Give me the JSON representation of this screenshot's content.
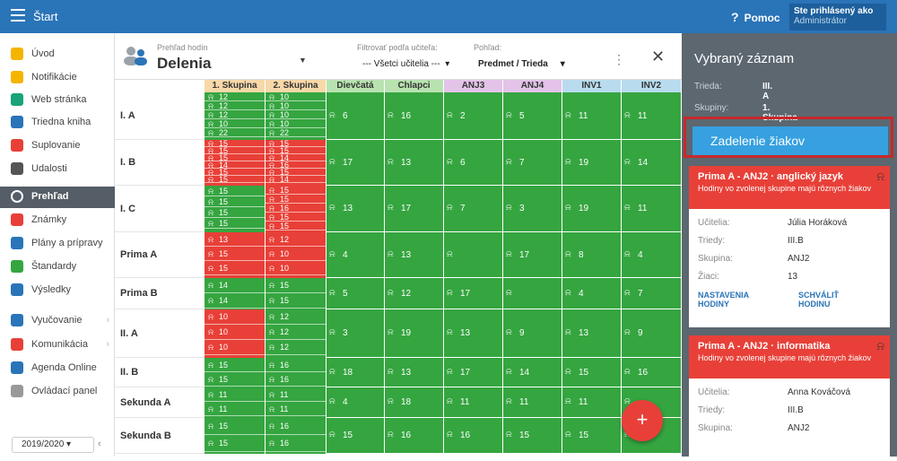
{
  "topbar": {
    "start": "Štart",
    "help": "Pomoc",
    "user_line": "Ste prihlásený ako",
    "user_role": "Administrátor"
  },
  "sidebar": {
    "items": [
      {
        "label": "Úvod",
        "icon": "star-icon",
        "color": "#f5b400"
      },
      {
        "label": "Notifikácie",
        "icon": "envelope-icon",
        "color": "#f5b400"
      },
      {
        "label": "Web stránka",
        "icon": "home-icon",
        "color": "#1aa37a"
      },
      {
        "label": "Triedna kniha",
        "icon": "book-icon",
        "color": "#2a74b8"
      },
      {
        "label": "Suplovanie",
        "icon": "person-icon",
        "color": "#e84038"
      },
      {
        "label": "Udalosti",
        "icon": "calendar-icon",
        "color": "#555"
      },
      {
        "label": "Prehľad",
        "icon": "check-icon",
        "color": "#fff"
      },
      {
        "label": "Známky",
        "icon": "grade-icon",
        "color": "#e84038"
      },
      {
        "label": "Plány a prípravy",
        "icon": "folder-icon",
        "color": "#2a74b8"
      },
      {
        "label": "Štandardy",
        "icon": "shield-icon",
        "color": "#35a540"
      },
      {
        "label": "Výsledky",
        "icon": "bar-chart-icon",
        "color": "#2a74b8"
      },
      {
        "label": "Vyučovanie",
        "icon": "board-icon",
        "color": "#2a74b8"
      },
      {
        "label": "Komunikácia",
        "icon": "people-icon",
        "color": "#e84038"
      },
      {
        "label": "Agenda Online",
        "icon": "pen-icon",
        "color": "#2a74b8"
      },
      {
        "label": "Ovládací panel",
        "icon": "gear-icon",
        "color": "#999"
      }
    ],
    "year": "2019/2020"
  },
  "header": {
    "subtitle": "Prehľad hodín",
    "title": "Delenia",
    "filter_label": "Filtrovať podľa učiteľa:",
    "filter_value": "--- Všetci učitelia ---",
    "view_label": "Pohľad:",
    "view_value": "Predmet / Trieda"
  },
  "columns": [
    {
      "label": "1. Skupina",
      "bg": "#f7d8a8"
    },
    {
      "label": "2. Skupina",
      "bg": "#f7d8a8"
    },
    {
      "label": "Dievčatá",
      "bg": "#b8e3b0"
    },
    {
      "label": "Chlapci",
      "bg": "#b8e3b0"
    },
    {
      "label": "ANJ3",
      "bg": "#e3c3e8"
    },
    {
      "label": "ANJ4",
      "bg": "#e3c3e8"
    },
    {
      "label": "INV1",
      "bg": "#b8dcee"
    },
    {
      "label": "INV2",
      "bg": "#b8dcee"
    }
  ],
  "rows": [
    {
      "label": "I. A",
      "g1": [
        "12",
        "12",
        "12",
        "10",
        "22"
      ],
      "g2": [
        "10",
        "10",
        "10",
        "10",
        "22"
      ],
      "g1c": "green",
      "g2c": "green",
      "cells": [
        "6",
        "16",
        "2",
        "5",
        "11",
        "11"
      ]
    },
    {
      "label": "I. B",
      "g1": [
        "15",
        "15",
        "15",
        "14",
        "15",
        "15"
      ],
      "g2": [
        "15",
        "15",
        "14",
        "16",
        "15",
        "14"
      ],
      "g1c": "red",
      "g2c": "red",
      "cells": [
        "17",
        "13",
        "6",
        "7",
        "19",
        "14"
      ]
    },
    {
      "label": "I. C",
      "g1": [
        "15",
        "15",
        "15",
        "15"
      ],
      "g2": [
        "15",
        "15",
        "16",
        "15",
        "15"
      ],
      "g1c": "green",
      "g2c": "red",
      "cells": [
        "13",
        "17",
        "7",
        "3",
        "19",
        "11"
      ]
    },
    {
      "label": "Prima A",
      "g1": [
        "13",
        "15",
        "15"
      ],
      "g2": [
        "12",
        "10",
        "10"
      ],
      "g1c": "red",
      "g2c": "red",
      "cells": [
        "4",
        "13",
        "",
        "17",
        "8",
        "4"
      ]
    },
    {
      "label": "Prima B",
      "g1": [
        "14",
        "14"
      ],
      "g2": [
        "15",
        "15"
      ],
      "g1c": "green",
      "g2c": "green",
      "cells": [
        "5",
        "12",
        "17",
        "",
        "4",
        "7"
      ]
    },
    {
      "label": "II. A",
      "g1": [
        "10",
        "10",
        "10"
      ],
      "g2": [
        "12",
        "12",
        "12"
      ],
      "g1c": "red",
      "g2c": "green",
      "cells": [
        "3",
        "19",
        "13",
        "9",
        "13",
        "9"
      ]
    },
    {
      "label": "II. B",
      "g1": [
        "15",
        "15"
      ],
      "g2": [
        "16",
        "16"
      ],
      "g1c": "green",
      "g2c": "green",
      "cells": [
        "18",
        "13",
        "17",
        "14",
        "15",
        "16"
      ]
    },
    {
      "label": "Sekunda A",
      "g1": [
        "11",
        "11"
      ],
      "g2": [
        "11",
        "11"
      ],
      "g1c": "green",
      "g2c": "green",
      "cells": [
        "4",
        "18",
        "11",
        "11",
        "11",
        ""
      ]
    },
    {
      "label": "Sekunda B",
      "g1": [
        "15",
        "15"
      ],
      "g2": [
        "16",
        "16"
      ],
      "g1c": "green",
      "g2c": "green",
      "cells": [
        "15",
        "16",
        "16",
        "15",
        "15",
        ""
      ]
    }
  ],
  "panel": {
    "title": "Vybraný záznam",
    "trieda_label": "Trieda:",
    "trieda_value": "III. A",
    "skupiny_label": "Skupiny:",
    "skupiny_value": "1. Skupina",
    "button": "Zadelenie žiakov",
    "cards": [
      {
        "title": "Prima A - ANJ2 · anglický jazyk",
        "sub": "Hodiny vo zvolenej skupine majú rôznych žiakov",
        "rows": [
          [
            "Učitelia:",
            "Júlia Horáková"
          ],
          [
            "Triedy:",
            "III.B"
          ],
          [
            "Skupina:",
            "ANJ2"
          ],
          [
            "Žiaci:",
            "13"
          ]
        ],
        "link1": "NASTAVENIA HODINY",
        "link2": "SCHVÁLIŤ HODINU"
      },
      {
        "title": "Prima A - ANJ2 · informatika",
        "sub": "Hodiny vo zvolenej skupine majú rôznych žiakov",
        "rows": [
          [
            "Učitelia:",
            "Anna Kováčová"
          ],
          [
            "Triedy:",
            "III.B"
          ],
          [
            "Skupina:",
            "ANJ2"
          ]
        ]
      }
    ]
  },
  "fab": "+"
}
